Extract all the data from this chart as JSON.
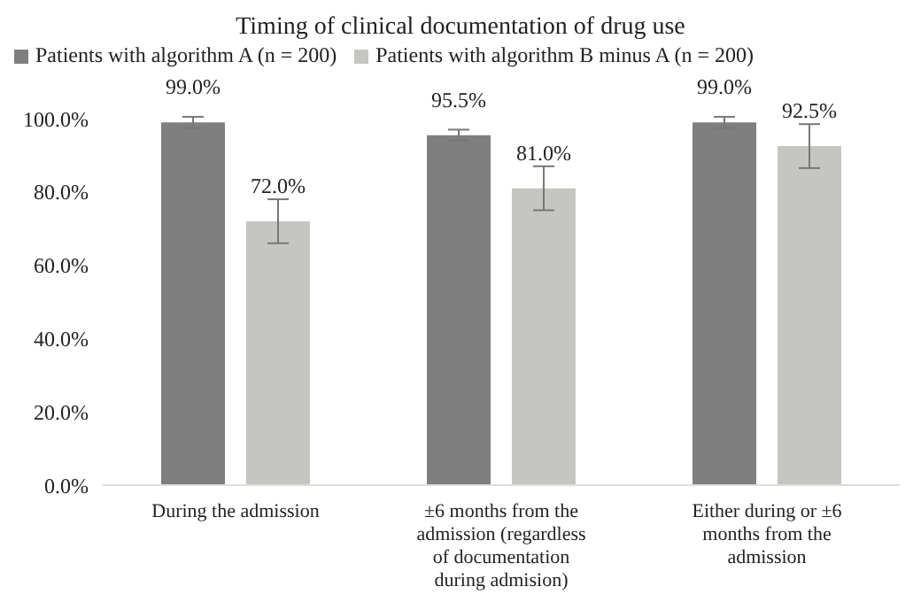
{
  "chart_data": {
    "type": "bar",
    "title": "Timing of clinical documentation of drug use",
    "categories": [
      "During the admission",
      "±6 months from the admission (regardless of documentation during admision)",
      "Either during or  ±6 months from the admission"
    ],
    "series": [
      {
        "name": "Patients with algorithm A (n = 200)",
        "color": "#7f7f7f",
        "values": [
          99.0,
          95.5,
          99.0
        ],
        "errors": [
          1.5,
          1.5,
          1.5
        ],
        "value_labels": [
          "99.0%",
          "95.5%",
          "99.0%"
        ]
      },
      {
        "name": "Patients with algorithm B minus A (n = 200)",
        "color": "#c5c6c1",
        "values": [
          72.0,
          81.0,
          92.5
        ],
        "errors": [
          6,
          6,
          6
        ],
        "value_labels": [
          "72.0%",
          "81.0%",
          "92.5%"
        ]
      }
    ],
    "ylim": [
      0,
      100
    ],
    "yticks": [
      {
        "value": 0,
        "label": "0.0%"
      },
      {
        "value": 20,
        "label": "20.0%"
      },
      {
        "value": 40,
        "label": "40.0%"
      },
      {
        "value": 60,
        "label": "60.0%"
      },
      {
        "value": 80,
        "label": "80.0%"
      },
      {
        "value": 100,
        "label": "100.0%"
      }
    ],
    "grid": false,
    "legend": "top"
  }
}
